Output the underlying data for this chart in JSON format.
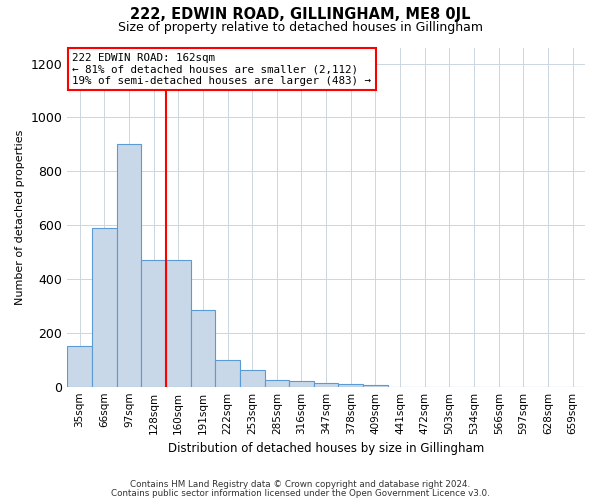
{
  "title": "222, EDWIN ROAD, GILLINGHAM, ME8 0JL",
  "subtitle": "Size of property relative to detached houses in Gillingham",
  "xlabel": "Distribution of detached houses by size in Gillingham",
  "ylabel": "Number of detached properties",
  "categories": [
    "35sqm",
    "66sqm",
    "97sqm",
    "128sqm",
    "160sqm",
    "191sqm",
    "222sqm",
    "253sqm",
    "285sqm",
    "316sqm",
    "347sqm",
    "378sqm",
    "409sqm",
    "441sqm",
    "472sqm",
    "503sqm",
    "534sqm",
    "566sqm",
    "597sqm",
    "628sqm",
    "659sqm"
  ],
  "values": [
    150,
    590,
    900,
    470,
    470,
    285,
    100,
    62,
    25,
    22,
    12,
    10,
    8,
    0,
    0,
    0,
    0,
    0,
    0,
    0,
    0
  ],
  "bar_color": "#c8d8e8",
  "bar_edge_color": "#5b9bd5",
  "red_line_bar_index": 3,
  "annotation_line1": "222 EDWIN ROAD: 162sqm",
  "annotation_line2": "← 81% of detached houses are smaller (2,112)",
  "annotation_line3": "19% of semi-detached houses are larger (483) →",
  "ylim_max": 1260,
  "yticks": [
    0,
    200,
    400,
    600,
    800,
    1000,
    1200
  ],
  "background_color": "#ffffff",
  "grid_color": "#ccd6e0",
  "footnote1": "Contains HM Land Registry data © Crown copyright and database right 2024.",
  "footnote2": "Contains public sector information licensed under the Open Government Licence v3.0."
}
